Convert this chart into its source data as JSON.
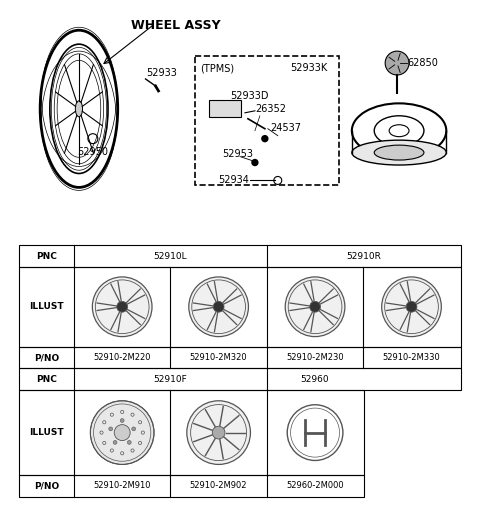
{
  "title": "WHEEL ASSY",
  "bg_color": "#ffffff",
  "border_color": "#000000",
  "diagram_top_labels": {
    "wheel_assy": "WHEEL ASSY",
    "tpms": "(TPMS)",
    "part_numbers_top": [
      "52933",
      "52933K",
      "52933D",
      "26352",
      "24537",
      "52953",
      "52950",
      "52934",
      "62850"
    ]
  },
  "table": {
    "row_labels": [
      "PNC",
      "ILLUST",
      "P/NO",
      "PNC",
      "ILLUST",
      "P/NO"
    ],
    "pnc_row1": [
      "52910L",
      "52910R"
    ],
    "pnc_row2": [
      "52910F",
      "52960"
    ],
    "pno_row1": [
      "52910-2M220",
      "52910-2M320",
      "52910-2M230",
      "52910-2M330"
    ],
    "pno_row2": [
      "52910-2M910",
      "52910-2M902",
      "52960-2M000"
    ]
  },
  "font_size_label": 7,
  "font_size_table": 6.5,
  "font_size_title": 9
}
